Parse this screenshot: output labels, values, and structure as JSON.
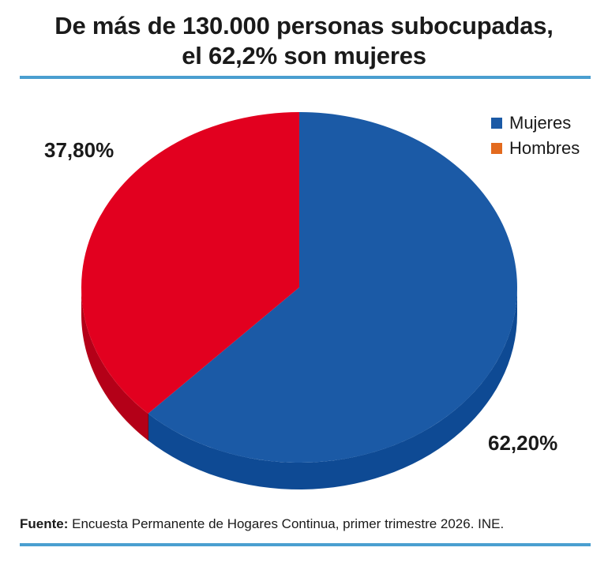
{
  "title_lines": [
    "De más de 130.000 personas subocupadas,",
    "el 62,2% son mujeres"
  ],
  "chart_data": {
    "type": "pie",
    "title": "De más de 130.000 personas subocupadas, el 62,2% son mujeres",
    "categories": [
      "Mujeres",
      "Hombres"
    ],
    "values": [
      62.2,
      37.8
    ],
    "data_labels": [
      "62,20%",
      "37,80%"
    ],
    "legend": {
      "placement": "top-right",
      "entries": [
        {
          "label": "Mujeres",
          "color": "#1b5aa6"
        },
        {
          "label": "Hombres",
          "color": "#e36a1e"
        }
      ]
    },
    "slice_colors": [
      "#1b5aa6",
      "#e2001f"
    ],
    "side_colors": [
      "#0e4a94",
      "#b40018"
    ]
  },
  "source": {
    "label": "Fuente:",
    "text": "Encuesta Permanente de Hogares Continua, primer trimestre 2026. INE."
  }
}
